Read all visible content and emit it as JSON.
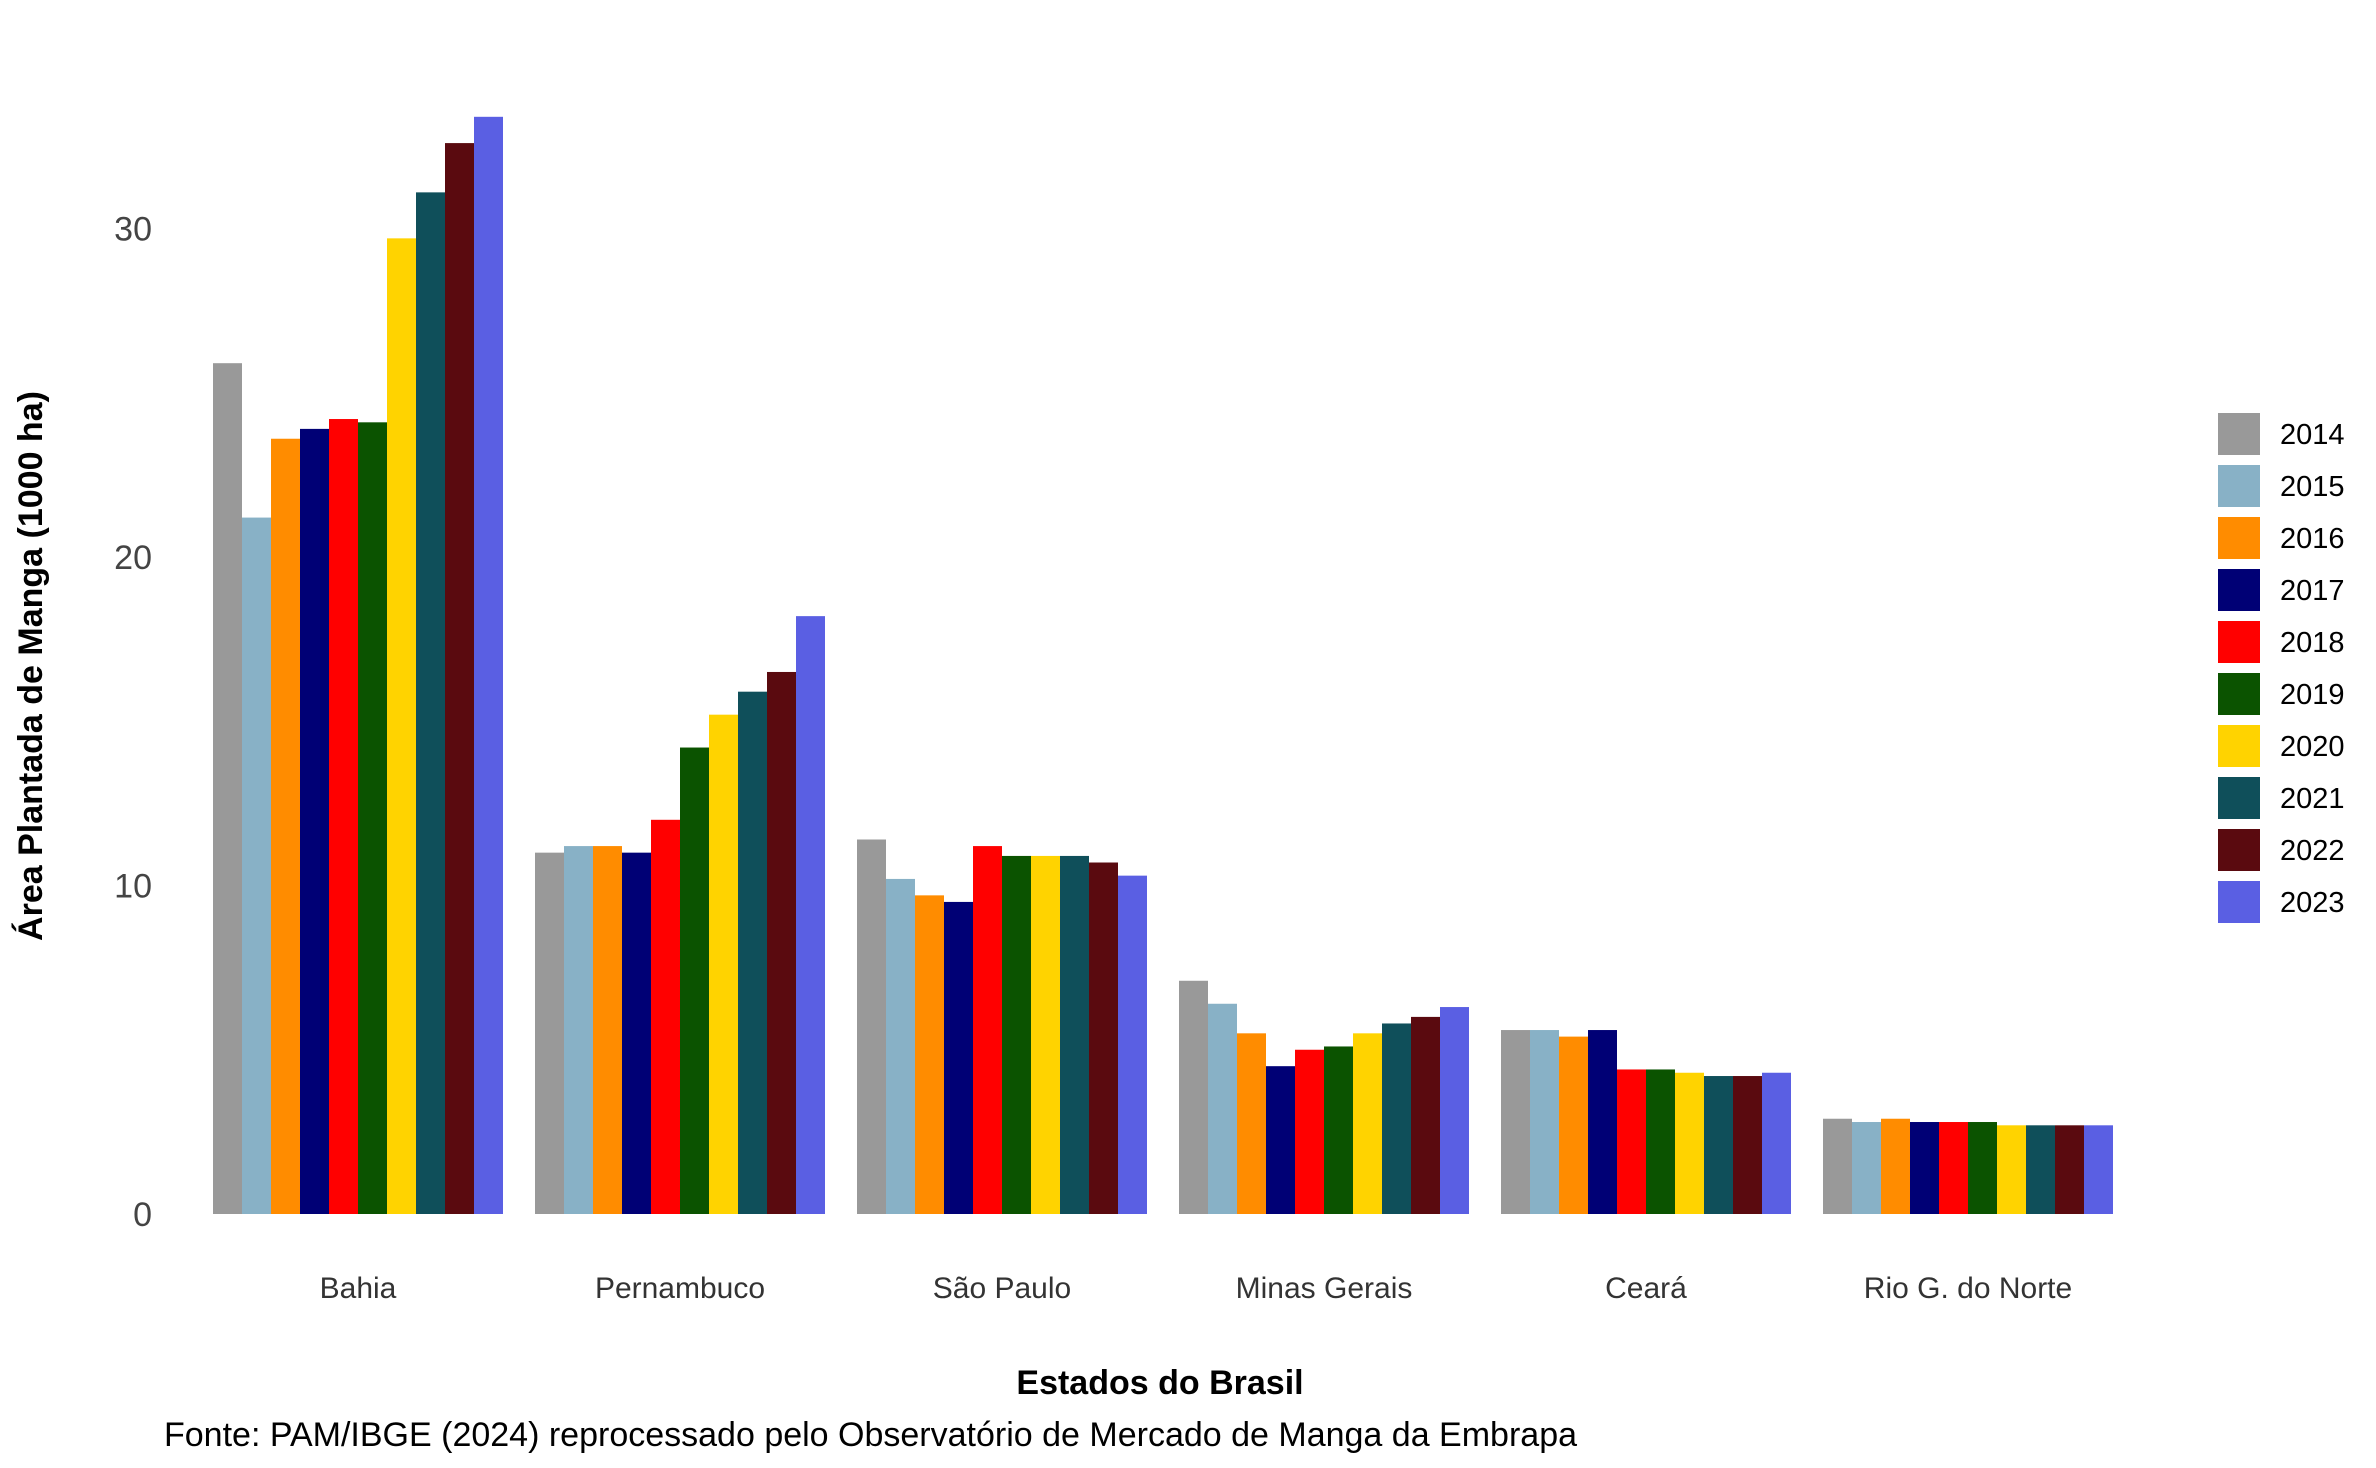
{
  "chart_data": {
    "type": "bar",
    "xlabel": "Estados do Brasil",
    "ylabel": "Área Plantada de Manga (1000 ha)",
    "ylim": [
      0,
      34
    ],
    "yticks": [
      0,
      10,
      20,
      30
    ],
    "grid": false,
    "legend_position": "right",
    "caption": "Fonte: PAM/IBGE (2024) reprocessado pelo Observatório de Mercado de Manga da Embrapa",
    "categories": [
      "Bahia",
      "Pernambuco",
      "São Paulo",
      "Minas Gerais",
      "Ceará",
      "Rio G. do Norte"
    ],
    "series": [
      {
        "name": "2014",
        "color": "#999999",
        "values": [
          25.9,
          11.0,
          11.4,
          7.1,
          5.6,
          2.9
        ]
      },
      {
        "name": "2015",
        "color": "#88B1C6",
        "values": [
          21.2,
          11.2,
          10.2,
          6.4,
          5.6,
          2.8
        ]
      },
      {
        "name": "2016",
        "color": "#FF8C00",
        "values": [
          23.6,
          11.2,
          9.7,
          5.5,
          5.4,
          2.9
        ]
      },
      {
        "name": "2017",
        "color": "#000075",
        "values": [
          23.9,
          11.0,
          9.5,
          4.5,
          5.6,
          2.8
        ]
      },
      {
        "name": "2018",
        "color": "#FF0000",
        "values": [
          24.2,
          12.0,
          11.2,
          5.0,
          4.4,
          2.8
        ]
      },
      {
        "name": "2019",
        "color": "#0B5300",
        "values": [
          24.1,
          14.2,
          10.9,
          5.1,
          4.4,
          2.8
        ]
      },
      {
        "name": "2020",
        "color": "#FFD300",
        "values": [
          29.7,
          15.2,
          10.9,
          5.5,
          4.3,
          2.7
        ]
      },
      {
        "name": "2021",
        "color": "#0F4F5A",
        "values": [
          31.1,
          15.9,
          10.9,
          5.8,
          4.2,
          2.7
        ]
      },
      {
        "name": "2022",
        "color": "#5A0A0F",
        "values": [
          32.6,
          16.5,
          10.7,
          6.0,
          4.2,
          2.7
        ]
      },
      {
        "name": "2023",
        "color": "#5A5FE3",
        "values": [
          33.4,
          18.2,
          10.3,
          6.3,
          4.3,
          2.7
        ]
      }
    ]
  }
}
